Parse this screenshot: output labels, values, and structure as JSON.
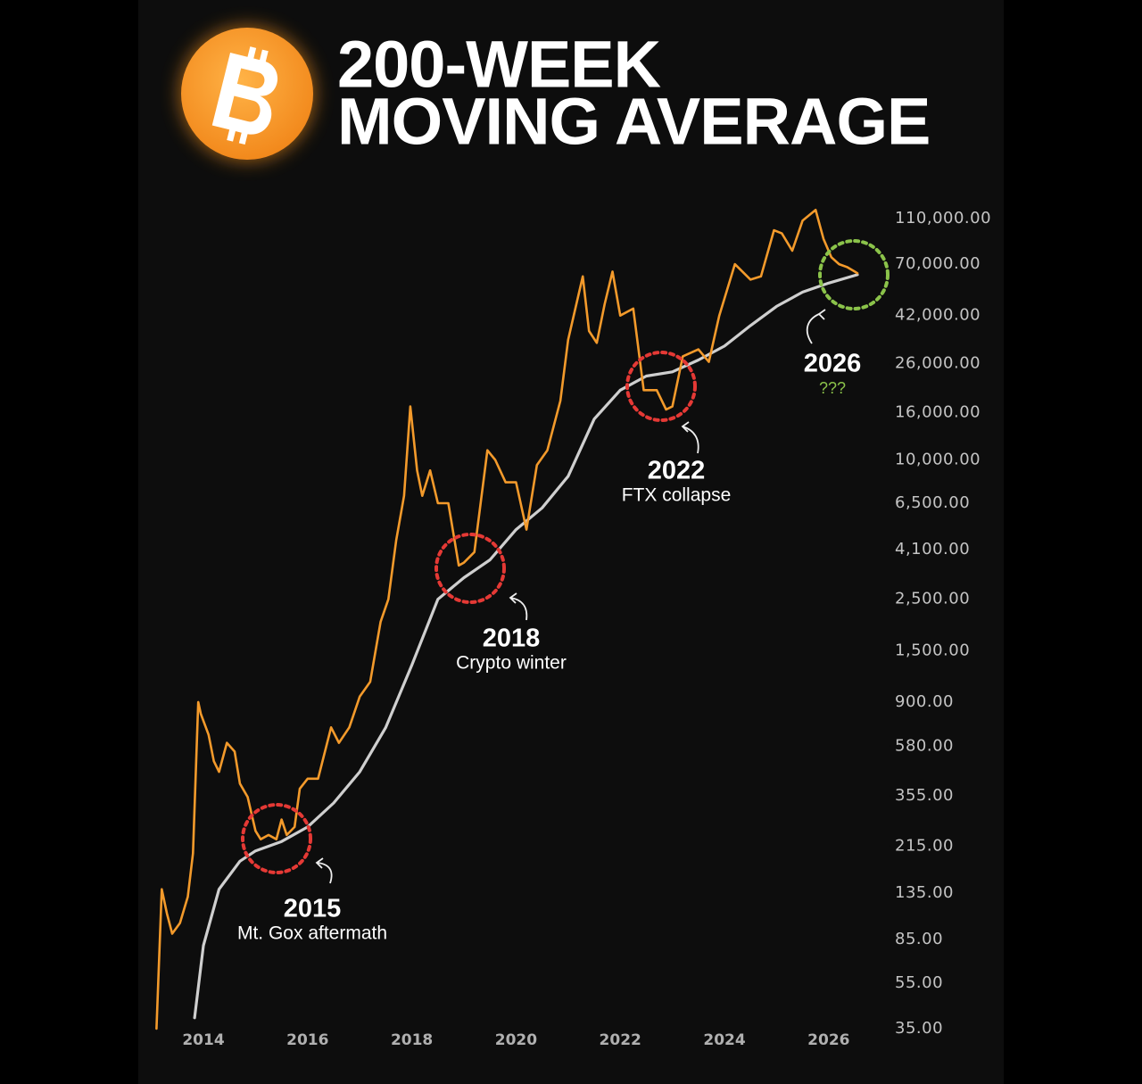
{
  "chart_data": {
    "type": "line",
    "title": [
      "200-WEEK",
      "MOVING AVERAGE"
    ],
    "yscale": "log",
    "xlim": [
      2013,
      2026.9
    ],
    "xticks": [
      2014,
      2016,
      2018,
      2020,
      2022,
      2024,
      2026
    ],
    "ylim": [
      32,
      125000
    ],
    "yticks": [
      {
        "value": 35,
        "label": "35.00"
      },
      {
        "value": 55,
        "label": "55.00"
      },
      {
        "value": 85,
        "label": "85.00"
      },
      {
        "value": 135,
        "label": "135.00"
      },
      {
        "value": 215,
        "label": "215.00"
      },
      {
        "value": 355,
        "label": "355.00"
      },
      {
        "value": 580,
        "label": "580.00"
      },
      {
        "value": 900,
        "label": "900.00"
      },
      {
        "value": 1500,
        "label": "1,500.00"
      },
      {
        "value": 2500,
        "label": "2,500.00"
      },
      {
        "value": 4100,
        "label": "4,100.00"
      },
      {
        "value": 6500,
        "label": "6,500.00"
      },
      {
        "value": 10000,
        "label": "10,000.00"
      },
      {
        "value": 16000,
        "label": "16,000.00"
      },
      {
        "value": 26000,
        "label": "26,000.00"
      },
      {
        "value": 42000,
        "label": "42,000.00"
      },
      {
        "value": 70000,
        "label": "70,000.00"
      },
      {
        "value": 110000,
        "label": "110,000.00"
      }
    ],
    "series": [
      {
        "color": "#f39a2b",
        "x": [
          2013.1,
          2013.2,
          2013.3,
          2013.4,
          2013.55,
          2013.7,
          2013.8,
          2013.9,
          2013.95,
          2014.1,
          2014.2,
          2014.3,
          2014.45,
          2014.6,
          2014.7,
          2014.85,
          2015.0,
          2015.1,
          2015.25,
          2015.4,
          2015.5,
          2015.6,
          2015.75,
          2015.85,
          2016.0,
          2016.2,
          2016.45,
          2016.6,
          2016.8,
          2017.0,
          2017.2,
          2017.4,
          2017.55,
          2017.7,
          2017.85,
          2017.97,
          2018.1,
          2018.2,
          2018.35,
          2018.5,
          2018.7,
          2018.9,
          2019.0,
          2019.2,
          2019.45,
          2019.6,
          2019.8,
          2020.0,
          2020.2,
          2020.4,
          2020.6,
          2020.85,
          2021.0,
          2021.28,
          2021.4,
          2021.55,
          2021.7,
          2021.85,
          2022.0,
          2022.25,
          2022.45,
          2022.7,
          2022.88,
          2023.0,
          2023.2,
          2023.5,
          2023.7,
          2023.9,
          2024.2,
          2024.5,
          2024.7,
          2024.95,
          2025.1,
          2025.3,
          2025.5,
          2025.75,
          2025.9,
          2026.05,
          2026.2,
          2026.35,
          2026.5,
          2026.55
        ],
        "values": [
          35,
          140,
          110,
          90,
          100,
          130,
          200,
          900,
          800,
          650,
          500,
          450,
          600,
          550,
          400,
          350,
          250,
          230,
          240,
          230,
          280,
          240,
          260,
          380,
          420,
          420,
          700,
          600,
          700,
          950,
          1100,
          2000,
          2500,
          4500,
          7000,
          17000,
          9000,
          7000,
          9000,
          6500,
          6500,
          3500,
          3600,
          4000,
          11000,
          10000,
          8000,
          8000,
          5000,
          9500,
          11000,
          18000,
          33000,
          62000,
          36000,
          32000,
          47000,
          65000,
          42000,
          45000,
          20000,
          20000,
          16500,
          17000,
          28000,
          30000,
          26500,
          42000,
          70000,
          60000,
          62000,
          98000,
          95000,
          80000,
          108000,
          120000,
          90000,
          75000,
          70000,
          68000,
          65000,
          64000
        ]
      },
      {
        "color": "#cfcfcf",
        "x": [
          2013.83,
          2014.0,
          2014.3,
          2014.7,
          2015.0,
          2015.5,
          2016.0,
          2016.5,
          2017.0,
          2017.5,
          2018.0,
          2018.5,
          2019.0,
          2019.5,
          2020.0,
          2020.5,
          2021.0,
          2021.5,
          2022.0,
          2022.5,
          2023.0,
          2023.5,
          2024.0,
          2024.5,
          2025.0,
          2025.5,
          2026.0,
          2026.55
        ],
        "values": [
          39,
          80,
          140,
          185,
          205,
          225,
          260,
          330,
          450,
          700,
          1300,
          2500,
          3100,
          3700,
          5000,
          6200,
          8500,
          15000,
          20000,
          23000,
          24000,
          27000,
          31000,
          38000,
          46000,
          53000,
          58000,
          63000
        ]
      }
    ],
    "annotations": [
      {
        "label": "2015",
        "note": "Mt. Gox aftermath",
        "color": "#e53935"
      },
      {
        "label": "2018",
        "note": "Crypto winter",
        "color": "#e53935"
      },
      {
        "label": "2022",
        "note": "FTX collapse",
        "color": "#e53935"
      },
      {
        "label": "2026",
        "note": "???",
        "color": "#8bc34a"
      }
    ]
  }
}
